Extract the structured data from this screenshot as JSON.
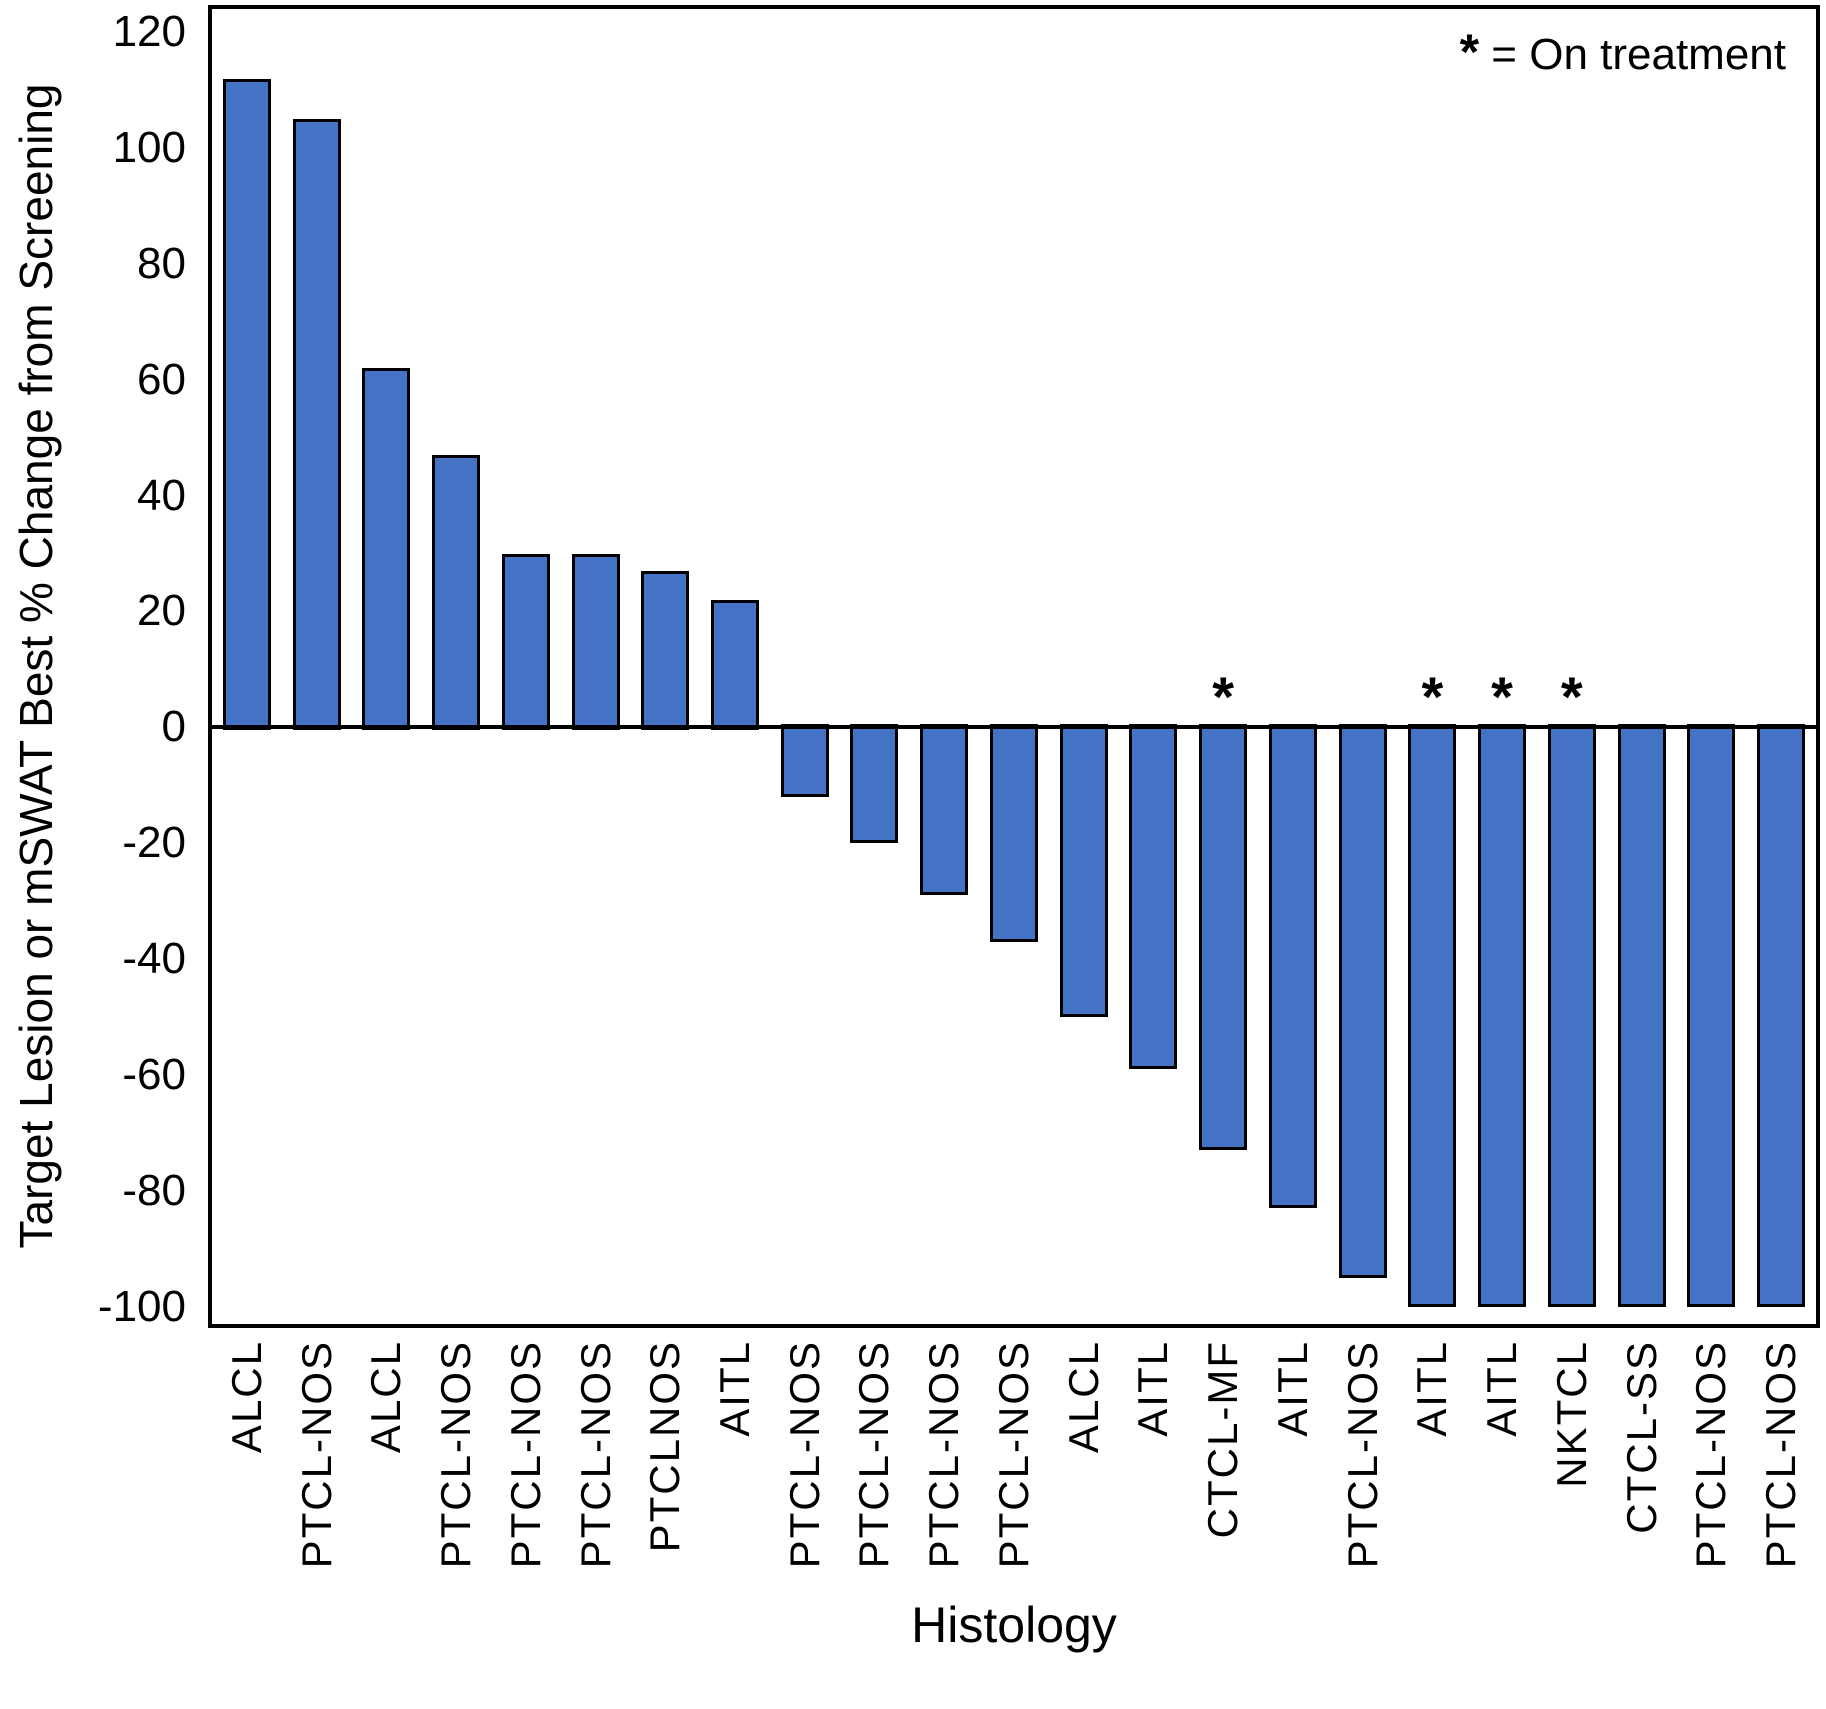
{
  "figure": {
    "legend": {
      "symbol": "*",
      "text": "= On treatment"
    },
    "y_axis": {
      "title": "Target Lesion or mSWAT Best % Change from Screening",
      "ticks": [
        120,
        100,
        80,
        60,
        40,
        20,
        0,
        -20,
        -40,
        -60,
        -80,
        -100
      ]
    },
    "x_axis": {
      "title": "Histology"
    }
  },
  "chart_data": {
    "type": "bar",
    "title": "",
    "xlabel": "Histology",
    "ylabel": "Target Lesion or mSWAT Best % Change from Screening",
    "ylim": [
      -103,
      124
    ],
    "grid": false,
    "legend_position": "top-right",
    "legend_note": "* = On treatment",
    "categories": [
      "ALCL",
      "PTCL-NOS",
      "ALCL",
      "PTCL-NOS",
      "PTCL-NOS",
      "PTCL-NOS",
      "PTCLNOS",
      "AITL",
      "PTCL-NOS",
      "PTCL-NOS",
      "PTCL-NOS",
      "PTCL-NOS",
      "ALCL",
      "AITL",
      "CTCL-MF",
      "AITL",
      "PTCL-NOS",
      "AITL",
      "AITL",
      "NKTCL",
      "CTCL-SS",
      "PTCL-NOS",
      "PTCL-NOS"
    ],
    "values": [
      112,
      105,
      62,
      47,
      30,
      30,
      27,
      22,
      -12,
      -20,
      -29,
      -37,
      -50,
      -59,
      -73,
      -83,
      -95,
      -100,
      -100,
      -100,
      -100,
      -100,
      -100
    ],
    "on_treatment": [
      false,
      false,
      false,
      false,
      false,
      false,
      false,
      false,
      false,
      false,
      false,
      false,
      false,
      false,
      true,
      false,
      false,
      true,
      true,
      true,
      false,
      false,
      false
    ],
    "bar_color": "#4472C4",
    "bar_border_color": "#000000"
  }
}
